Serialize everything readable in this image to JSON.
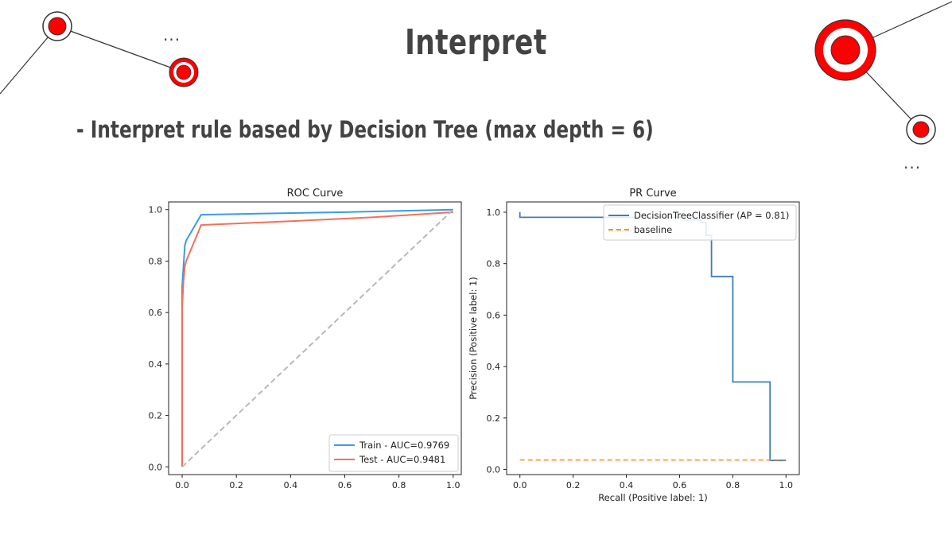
{
  "slide": {
    "title": "Interpret",
    "subtitle": "- Interpret rule based by Decision Tree (max depth = 6)",
    "ellipsis_left": "...",
    "ellipsis_right": "...",
    "accent_color": "#ff0000"
  },
  "chart_data": [
    {
      "type": "line",
      "title": "ROC Curve",
      "xlabel": "",
      "ylabel": "",
      "xlim": [
        -0.05,
        1.03
      ],
      "ylim": [
        -0.03,
        1.03
      ],
      "xticks": [
        0.0,
        0.2,
        0.4,
        0.6,
        0.8,
        1.0
      ],
      "yticks": [
        0.0,
        0.2,
        0.4,
        0.6,
        0.8,
        1.0
      ],
      "grid": false,
      "legend_position": "bottom-right",
      "series": [
        {
          "name": "Train - AUC=0.9769",
          "color": "#3b9ce3",
          "style": "solid",
          "x": [
            0.0,
            0.0,
            0.005,
            0.01,
            0.015,
            0.07,
            0.3,
            0.6,
            0.8,
            1.0
          ],
          "y": [
            0.0,
            0.7,
            0.78,
            0.86,
            0.88,
            0.98,
            0.985,
            0.99,
            0.995,
            1.0
          ]
        },
        {
          "name": "Test - AUC=0.9481",
          "color": "#f2705a",
          "style": "solid",
          "x": [
            0.0,
            0.0,
            0.005,
            0.01,
            0.015,
            0.07,
            0.4,
            0.7,
            1.0
          ],
          "y": [
            0.0,
            0.62,
            0.72,
            0.78,
            0.8,
            0.94,
            0.955,
            0.97,
            0.99
          ]
        },
        {
          "name": "",
          "color": "#b8b8b8",
          "style": "dashed",
          "x": [
            0.0,
            1.0
          ],
          "y": [
            0.0,
            1.0
          ]
        }
      ]
    },
    {
      "type": "line",
      "title": "PR Curve",
      "xlabel": "Recall (Positive label: 1)",
      "ylabel": "Precision (Positive label: 1)",
      "xlim": [
        -0.05,
        1.05
      ],
      "ylim": [
        -0.02,
        1.04
      ],
      "xticks": [
        0.0,
        0.2,
        0.4,
        0.6,
        0.8,
        1.0
      ],
      "yticks": [
        0.0,
        0.2,
        0.4,
        0.6,
        0.8,
        1.0
      ],
      "grid": false,
      "legend_position": "top-right",
      "series": [
        {
          "name": "DecisionTreeClassifier (AP = 0.81)",
          "color": "#3f7fb5",
          "style": "step",
          "x": [
            0.0,
            0.0,
            0.62,
            0.62,
            0.68,
            0.68,
            0.7,
            0.7,
            0.72,
            0.72,
            0.8,
            0.8,
            0.94,
            0.94,
            1.0
          ],
          "y": [
            1.0,
            0.98,
            0.98,
            0.97,
            0.97,
            0.96,
            0.96,
            0.91,
            0.91,
            0.75,
            0.75,
            0.34,
            0.34,
            0.035,
            0.035
          ]
        },
        {
          "name": "baseline",
          "color": "#ff8c1a",
          "style": "dashed",
          "x": [
            0.0,
            1.0
          ],
          "y": [
            0.037,
            0.037
          ]
        }
      ]
    }
  ]
}
